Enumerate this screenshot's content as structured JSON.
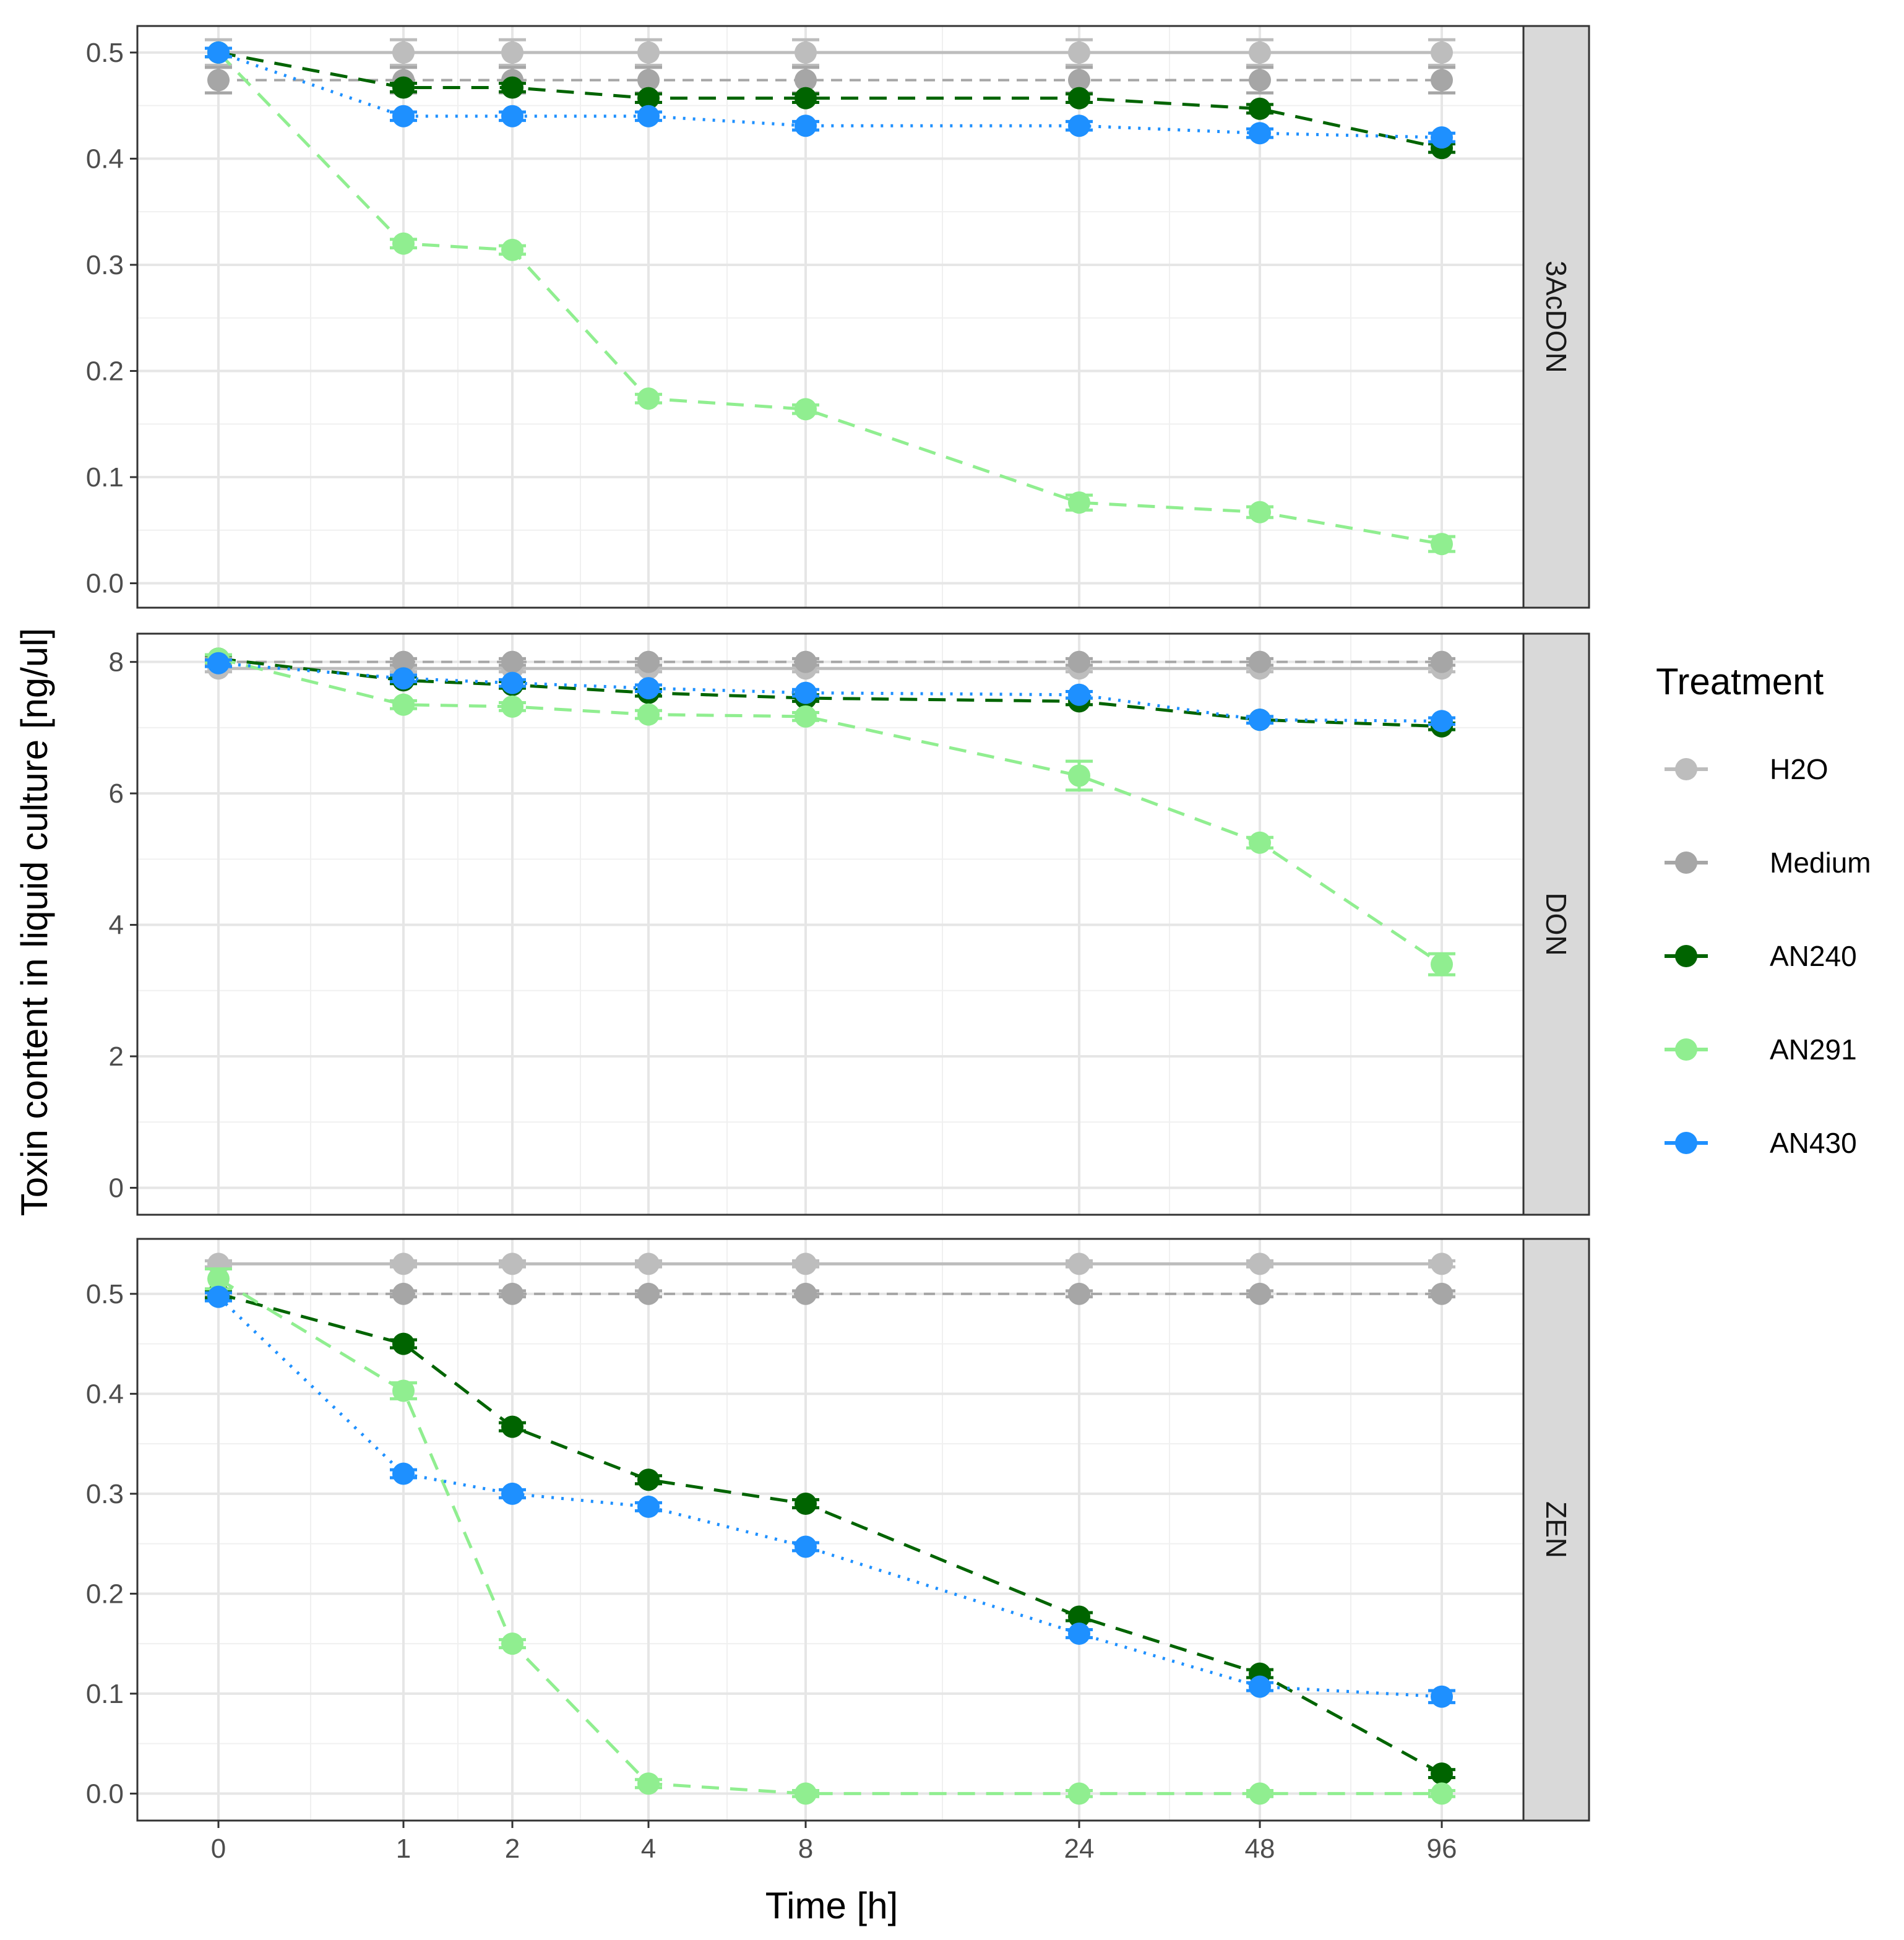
{
  "chart_data": {
    "type": "line",
    "xlabel": "Time [h]",
    "ylabel": "Toxin content in liquid culture [ng/ul]",
    "categories": [
      "0",
      "1",
      "2",
      "4",
      "8",
      "24",
      "48",
      "96"
    ],
    "legend": {
      "title": "Treatment",
      "position": "right",
      "entries": [
        {
          "name": "H2O",
          "color": "#bdbdbd",
          "dash": "solid"
        },
        {
          "name": "Medium",
          "color": "#a6a6a6",
          "dash": "longdash"
        },
        {
          "name": "AN240",
          "color": "#006400",
          "dash": "dashed"
        },
        {
          "name": "AN291",
          "color": "#90ee90",
          "dash": "dashed"
        },
        {
          "name": "AN430",
          "color": "#1e90ff",
          "dash": "dotted"
        }
      ]
    },
    "panels": [
      {
        "label": "3AcDON",
        "ylim": [
          -0.023,
          0.525
        ],
        "yticks": [
          0.0,
          0.1,
          0.2,
          0.3,
          0.4,
          0.5
        ],
        "ytick_labels": [
          "0.0",
          "0.1",
          "0.2",
          "0.3",
          "0.4",
          "0.5"
        ],
        "series": [
          {
            "name": "H2O",
            "values": [
              0.5,
              0.5,
              0.5,
              0.5,
              0.5,
              0.5,
              0.5,
              0.5
            ],
            "err": [
              0.012,
              0.012,
              0.012,
              0.012,
              0.012,
              0.012,
              0.012,
              0.012
            ]
          },
          {
            "name": "Medium",
            "values": [
              0.474,
              0.474,
              0.474,
              0.474,
              0.474,
              0.474,
              0.474,
              0.474
            ],
            "err": [
              0.012,
              0.012,
              0.012,
              0.012,
              0.012,
              0.012,
              0.012,
              0.012
            ]
          },
          {
            "name": "AN240",
            "values": [
              0.5,
              0.467,
              0.467,
              0.457,
              0.457,
              0.457,
              0.447,
              0.41
            ],
            "err": [
              0.004,
              0.004,
              0.004,
              0.004,
              0.004,
              0.004,
              0.004,
              0.004
            ]
          },
          {
            "name": "AN291",
            "values": [
              0.5,
              0.32,
              0.314,
              0.174,
              0.164,
              0.076,
              0.067,
              0.037
            ],
            "err": [
              0.004,
              0.004,
              0.004,
              0.004,
              0.004,
              0.007,
              0.005,
              0.007
            ]
          },
          {
            "name": "AN430",
            "values": [
              0.5,
              0.44,
              0.44,
              0.44,
              0.431,
              0.431,
              0.424,
              0.42
            ],
            "err": [
              0.004,
              0.004,
              0.004,
              0.004,
              0.004,
              0.004,
              0.004,
              0.004
            ]
          }
        ]
      },
      {
        "label": "DON",
        "ylim": [
          -0.41,
          8.43
        ],
        "yticks": [
          0,
          2,
          4,
          6,
          8
        ],
        "ytick_labels": [
          "0",
          "2",
          "4",
          "6",
          "8"
        ],
        "series": [
          {
            "name": "H2O",
            "values": [
              7.9,
              7.9,
              7.9,
              7.9,
              7.9,
              7.9,
              7.9,
              7.9
            ],
            "err": [
              0.05,
              0.05,
              0.05,
              0.05,
              0.05,
              0.05,
              0.05,
              0.05
            ]
          },
          {
            "name": "Medium",
            "values": [
              8.0,
              8.0,
              8.0,
              8.0,
              8.0,
              8.0,
              8.0,
              8.0
            ],
            "err": [
              0.05,
              0.05,
              0.05,
              0.05,
              0.05,
              0.05,
              0.05,
              0.05
            ]
          },
          {
            "name": "AN240",
            "values": [
              8.05,
              7.72,
              7.65,
              7.53,
              7.45,
              7.4,
              7.12,
              7.02
            ],
            "err": [
              0.05,
              0.05,
              0.05,
              0.05,
              0.05,
              0.05,
              0.05,
              0.05
            ]
          },
          {
            "name": "AN291",
            "values": [
              8.05,
              7.35,
              7.32,
              7.2,
              7.17,
              6.27,
              5.25,
              3.4
            ],
            "err": [
              0.06,
              0.06,
              0.06,
              0.06,
              0.06,
              0.22,
              0.08,
              0.16
            ]
          },
          {
            "name": "AN430",
            "values": [
              7.98,
              7.75,
              7.68,
              7.6,
              7.53,
              7.5,
              7.12,
              7.1
            ],
            "err": [
              0.05,
              0.05,
              0.05,
              0.05,
              0.05,
              0.05,
              0.05,
              0.05
            ]
          }
        ]
      },
      {
        "label": "ZEN",
        "ylim": [
          -0.027,
          0.555
        ],
        "yticks": [
          0.0,
          0.1,
          0.2,
          0.3,
          0.4,
          0.5
        ],
        "ytick_labels": [
          "0.0",
          "0.1",
          "0.2",
          "0.3",
          "0.4",
          "0.5"
        ],
        "series": [
          {
            "name": "H2O",
            "values": [
              0.53,
              0.53,
              0.53,
              0.53,
              0.53,
              0.53,
              0.53,
              0.53
            ],
            "err": [
              0.003,
              0.003,
              0.003,
              0.003,
              0.003,
              0.003,
              0.003,
              0.003
            ]
          },
          {
            "name": "Medium",
            "values": [
              0.5,
              0.5,
              0.5,
              0.5,
              0.5,
              0.5,
              0.5,
              0.5
            ],
            "err": [
              0.003,
              0.003,
              0.003,
              0.003,
              0.003,
              0.003,
              0.003,
              0.003
            ]
          },
          {
            "name": "AN240",
            "values": [
              0.5,
              0.45,
              0.367,
              0.314,
              0.29,
              0.177,
              0.12,
              0.02
            ],
            "err": [
              0.004,
              0.004,
              0.004,
              0.004,
              0.004,
              0.004,
              0.004,
              0.004
            ]
          },
          {
            "name": "AN291",
            "values": [
              0.515,
              0.403,
              0.15,
              0.01,
              0.0,
              0.0,
              0.0,
              0.0
            ],
            "err": [
              0.01,
              0.008,
              0.004,
              0.004,
              0.003,
              0.003,
              0.003,
              0.003
            ]
          },
          {
            "name": "AN430",
            "values": [
              0.497,
              0.32,
              0.3,
              0.287,
              0.247,
              0.16,
              0.107,
              0.097
            ],
            "err": [
              0.004,
              0.004,
              0.004,
              0.004,
              0.004,
              0.004,
              0.004,
              0.006
            ]
          }
        ]
      }
    ]
  }
}
